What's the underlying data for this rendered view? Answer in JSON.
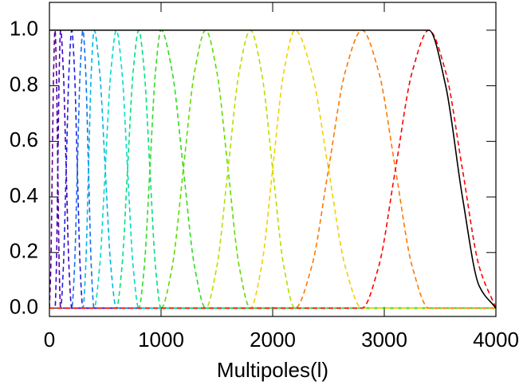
{
  "chart_data": {
    "type": "line",
    "x_label": "Multipoles(l)",
    "xlim": [
      0,
      4000
    ],
    "xticks": [
      0,
      1000,
      2000,
      3000,
      4000
    ],
    "ylim": [
      -0.03,
      1.1
    ],
    "yticks": [
      {
        "value": 0,
        "label": "0.0"
      },
      {
        "value": 0.2,
        "label": "0.2"
      },
      {
        "value": 0.4,
        "label": "0.4"
      },
      {
        "value": 0.6,
        "label": "0.6"
      },
      {
        "value": 0.8,
        "label": "0.8"
      },
      {
        "value": 1,
        "label": "1.0"
      }
    ],
    "series": [
      {
        "color": "#5a0096",
        "dash": true,
        "x": [
          0,
          12.5,
          25,
          37.5,
          50,
          62.5,
          75,
          87.5,
          100,
          4000
        ],
        "values": [
          0,
          0.15,
          0.5,
          0.85,
          1,
          0.85,
          0.5,
          0.15,
          0,
          0
        ]
      },
      {
        "color": "#4000c0",
        "dash": true,
        "x": [
          0,
          50,
          62.5,
          75,
          87.5,
          100,
          125,
          150,
          175,
          200,
          4000
        ],
        "values": [
          0,
          0,
          0.15,
          0.5,
          0.85,
          1,
          0.85,
          0.5,
          0.15,
          0,
          0
        ]
      },
      {
        "color": "#2020dc",
        "dash": true,
        "x": [
          0,
          100,
          125,
          150,
          175,
          200,
          225,
          250,
          275,
          300,
          4000
        ],
        "values": [
          0,
          0,
          0.15,
          0.5,
          0.85,
          1,
          0.85,
          0.5,
          0.15,
          0,
          0
        ]
      },
      {
        "color": "#1070f0",
        "dash": true,
        "x": [
          0,
          200,
          225,
          250,
          275,
          300,
          325,
          350,
          375,
          400,
          4000
        ],
        "values": [
          0,
          0,
          0.15,
          0.5,
          0.85,
          1,
          0.85,
          0.5,
          0.15,
          0,
          0
        ]
      },
      {
        "color": "#00b4e6",
        "dash": true,
        "x": [
          0,
          300,
          325,
          350,
          375,
          400,
          450,
          500,
          550,
          600,
          4000
        ],
        "values": [
          0,
          0,
          0.15,
          0.5,
          0.85,
          1,
          0.85,
          0.5,
          0.15,
          0,
          0
        ]
      },
      {
        "color": "#00dcc8",
        "dash": true,
        "x": [
          0,
          400,
          450,
          500,
          550,
          600,
          650,
          700,
          750,
          800,
          4000
        ],
        "values": [
          0,
          0,
          0.15,
          0.5,
          0.85,
          1,
          0.85,
          0.5,
          0.15,
          0,
          0
        ]
      },
      {
        "color": "#00e080",
        "dash": true,
        "x": [
          0,
          600,
          650,
          700,
          750,
          800,
          850,
          900,
          950,
          1000,
          4000
        ],
        "values": [
          0,
          0,
          0.15,
          0.5,
          0.85,
          1,
          0.85,
          0.5,
          0.15,
          0,
          0
        ]
      },
      {
        "color": "#30dc20",
        "dash": true,
        "x": [
          0,
          800,
          850,
          900,
          950,
          1000,
          1100,
          1200,
          1300,
          1400,
          4000
        ],
        "values": [
          0,
          0,
          0.15,
          0.5,
          0.85,
          1,
          0.85,
          0.5,
          0.15,
          0,
          0
        ]
      },
      {
        "color": "#60dc00",
        "dash": true,
        "x": [
          0,
          1000,
          1100,
          1200,
          1300,
          1400,
          1500,
          1600,
          1700,
          1800,
          4000
        ],
        "values": [
          0,
          0,
          0.15,
          0.5,
          0.85,
          1,
          0.85,
          0.5,
          0.15,
          0,
          0
        ]
      },
      {
        "color": "#b4e000",
        "dash": true,
        "x": [
          0,
          1400,
          1500,
          1600,
          1700,
          1800,
          1900,
          2000,
          2100,
          2200,
          4000
        ],
        "values": [
          0,
          0,
          0.15,
          0.5,
          0.85,
          1,
          0.85,
          0.5,
          0.15,
          0,
          0
        ]
      },
      {
        "color": "#f0d200",
        "dash": true,
        "x": [
          0,
          1800,
          1900,
          2000,
          2100,
          2200,
          2350,
          2500,
          2650,
          2800,
          4000
        ],
        "values": [
          0,
          0,
          0.15,
          0.5,
          0.85,
          1,
          0.85,
          0.5,
          0.15,
          0,
          0
        ]
      },
      {
        "color": "#ff7800",
        "dash": true,
        "x": [
          0,
          2200,
          2350,
          2500,
          2650,
          2800,
          2950,
          3100,
          3250,
          3400,
          4000
        ],
        "values": [
          0,
          0,
          0.15,
          0.5,
          0.85,
          1,
          0.85,
          0.5,
          0.15,
          0,
          0
        ]
      },
      {
        "color": "#ff0000",
        "dash": true,
        "x": [
          0,
          2800,
          2950,
          3100,
          3250,
          3400,
          3550,
          3700,
          3850,
          4000
        ],
        "values": [
          0,
          0,
          0.15,
          0.5,
          0.85,
          1,
          0.85,
          0.5,
          0.15,
          0
        ]
      },
      {
        "color": "#000000",
        "dash": false,
        "x": [
          0,
          3400,
          3550,
          3700,
          3850,
          4000
        ],
        "values": [
          1,
          1,
          0.8,
          0.4,
          0.08,
          0
        ]
      }
    ]
  }
}
